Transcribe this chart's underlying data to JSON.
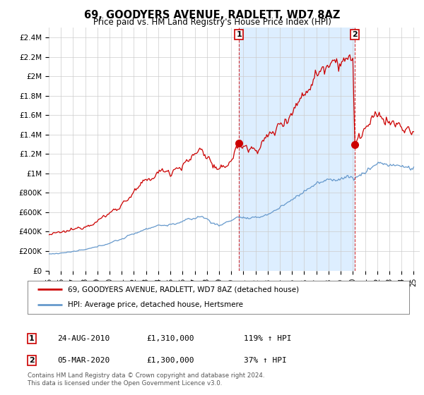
{
  "title": "69, GOODYERS AVENUE, RADLETT, WD7 8AZ",
  "subtitle": "Price paid vs. HM Land Registry's House Price Index (HPI)",
  "ylim": [
    0,
    2500000
  ],
  "xlim_start": 1995.0,
  "xlim_end": 2025.5,
  "yticks": [
    0,
    200000,
    400000,
    600000,
    800000,
    1000000,
    1200000,
    1400000,
    1600000,
    1800000,
    2000000,
    2200000,
    2400000
  ],
  "ytick_labels": [
    "£0",
    "£200K",
    "£400K",
    "£600K",
    "£800K",
    "£1M",
    "£1.2M",
    "£1.4M",
    "£1.6M",
    "£1.8M",
    "£2M",
    "£2.2M",
    "£2.4M"
  ],
  "sale1_x": 2010.648,
  "sale1_y": 1310000,
  "sale1_label": "1",
  "sale2_x": 2020.17,
  "sale2_y": 1300000,
  "sale2_label": "2",
  "red_line_color": "#cc0000",
  "blue_line_color": "#6699cc",
  "shade_color": "#ddeeff",
  "legend_label_red": "69, GOODYERS AVENUE, RADLETT, WD7 8AZ (detached house)",
  "legend_label_blue": "HPI: Average price, detached house, Hertsmere",
  "table_row1": [
    "1",
    "24-AUG-2010",
    "£1,310,000",
    "119% ↑ HPI"
  ],
  "table_row2": [
    "2",
    "05-MAR-2020",
    "£1,300,000",
    "37% ↑ HPI"
  ],
  "footnote": "Contains HM Land Registry data © Crown copyright and database right 2024.\nThis data is licensed under the Open Government Licence v3.0.",
  "bg_color": "#ffffff",
  "grid_color": "#cccccc",
  "xtick_labels": [
    "95",
    "96",
    "97",
    "98",
    "99",
    "00",
    "01",
    "02",
    "03",
    "04",
    "05",
    "06",
    "07",
    "08",
    "09",
    "10",
    "11",
    "12",
    "13",
    "14",
    "15",
    "16",
    "17",
    "18",
    "19",
    "20",
    "21",
    "22",
    "23",
    "24",
    "25"
  ],
  "xticks": [
    1995,
    1996,
    1997,
    1998,
    1999,
    2000,
    2001,
    2002,
    2003,
    2004,
    2005,
    2006,
    2007,
    2008,
    2009,
    2010,
    2011,
    2012,
    2013,
    2014,
    2015,
    2016,
    2017,
    2018,
    2019,
    2020,
    2021,
    2022,
    2023,
    2024,
    2025
  ]
}
